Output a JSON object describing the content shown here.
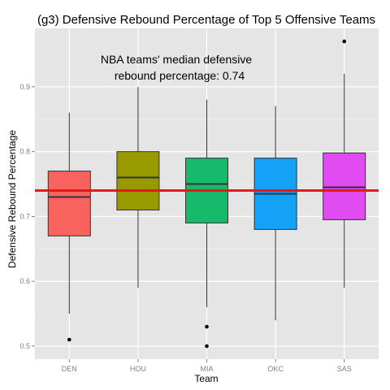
{
  "chart_data": {
    "type": "box",
    "title": "(g3) Defensive Rebound Percentage of Top 5 Offensive Teams",
    "xlabel": "Team",
    "ylabel": "Defensive Rebound Percentage",
    "ylim": [
      0.48,
      0.99
    ],
    "yticks": [
      "0.5",
      "0.6",
      "0.7",
      "0.8",
      "0.9"
    ],
    "grid": true,
    "legend": "none",
    "annotation": [
      "NBA teams' median defensive",
      "rebound percentage: 0.74"
    ],
    "reference_line": {
      "value": 0.74,
      "color": "#e0191b"
    },
    "categories": [
      "DEN",
      "HOU",
      "MIA",
      "OKC",
      "SAS"
    ],
    "boxes": [
      {
        "team": "DEN",
        "color": "#f8635d",
        "whisker_low": 0.55,
        "q1": 0.67,
        "median": 0.73,
        "q3": 0.77,
        "whisker_high": 0.86,
        "outliers": [
          0.51
        ]
      },
      {
        "team": "HOU",
        "color": "#999900",
        "whisker_low": 0.59,
        "q1": 0.71,
        "median": 0.76,
        "q3": 0.8,
        "whisker_high": 0.9,
        "outliers": []
      },
      {
        "team": "MIA",
        "color": "#17ba6a",
        "whisker_low": 0.56,
        "q1": 0.69,
        "median": 0.75,
        "q3": 0.79,
        "whisker_high": 0.88,
        "outliers": [
          0.53,
          0.5
        ]
      },
      {
        "team": "OKC",
        "color": "#15a2f6",
        "whisker_low": 0.54,
        "q1": 0.68,
        "median": 0.735,
        "q3": 0.79,
        "whisker_high": 0.87,
        "outliers": []
      },
      {
        "team": "SAS",
        "color": "#e14cf2",
        "whisker_low": 0.59,
        "q1": 0.695,
        "median": 0.745,
        "q3": 0.798,
        "whisker_high": 0.92,
        "outliers": [
          0.97
        ]
      }
    ]
  }
}
